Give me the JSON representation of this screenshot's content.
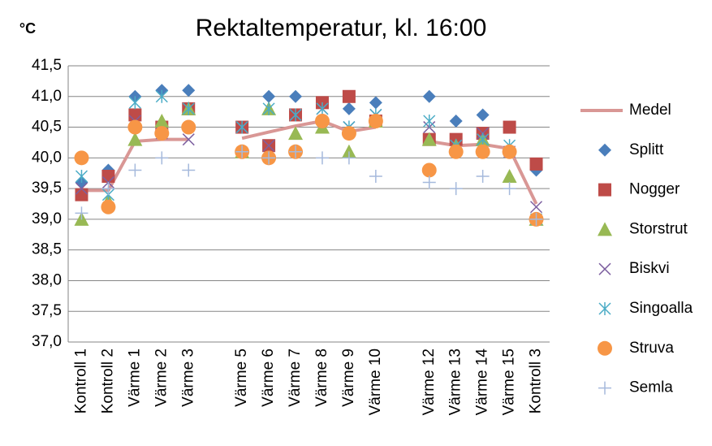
{
  "chart_data": {
    "type": "line",
    "title": "Rektaltemperatur, kl. 16:00",
    "y_unit": "°C",
    "categories": [
      "Kontroll 1",
      "Kontroll 2",
      "Värme 1",
      "Värme 2",
      "Värme 3",
      null,
      "Värme 5",
      "Värme 6",
      "Värme 7",
      "Värme 8",
      "Värme 9",
      "Värme 10",
      null,
      "Värme 12",
      "Värme 13",
      "Värme 14",
      "Värme 15",
      "Kontroll 3"
    ],
    "ylim": [
      37,
      41.5
    ],
    "yticks": [
      {
        "value": 37,
        "label": "37,0"
      },
      {
        "value": 37.5,
        "label": "37,5"
      },
      {
        "value": 38,
        "label": "38,0"
      },
      {
        "value": 38.5,
        "label": "38,5"
      },
      {
        "value": 39,
        "label": "39,0"
      },
      {
        "value": 39.5,
        "label": "39,5"
      },
      {
        "value": 40,
        "label": "40,0"
      },
      {
        "value": 40.5,
        "label": "40,5"
      },
      {
        "value": 41,
        "label": "41,0"
      },
      {
        "value": 41.5,
        "label": "41,5"
      }
    ],
    "grid": true,
    "legend": "right",
    "series": [
      {
        "name": "Medel",
        "color": "#d99795",
        "line": true,
        "values": [
          39.47,
          39.47,
          40.27,
          40.3,
          40.3,
          null,
          40.32,
          40.42,
          40.52,
          40.6,
          40.43,
          40.5,
          null,
          40.27,
          40.2,
          40.22,
          40.15,
          39.25
        ]
      },
      {
        "name": "Splitt",
        "color": "#4a7ebb",
        "marker": "diamond",
        "values": [
          39.6,
          39.8,
          41.0,
          41.1,
          41.1,
          null,
          40.5,
          41.0,
          41.0,
          40.9,
          40.8,
          40.9,
          null,
          41.0,
          40.6,
          40.7,
          40.5,
          39.8
        ]
      },
      {
        "name": "Nogger",
        "color": "#be4b48",
        "marker": "square",
        "values": [
          39.4,
          39.7,
          40.7,
          40.5,
          40.8,
          null,
          40.5,
          40.2,
          40.7,
          40.9,
          41.0,
          40.6,
          null,
          40.3,
          40.3,
          40.4,
          40.5,
          39.9
        ]
      },
      {
        "name": "Storstrut",
        "color": "#98b954",
        "marker": "triangle",
        "values": [
          39.0,
          39.3,
          40.3,
          40.6,
          40.8,
          null,
          40.1,
          40.8,
          40.4,
          40.5,
          40.1,
          40.6,
          null,
          40.3,
          40.2,
          40.3,
          39.7,
          39.0
        ]
      },
      {
        "name": "Biskvi",
        "color": "#7d60a0",
        "marker": "x",
        "values": [
          39.5,
          39.6,
          40.6,
          40.4,
          40.3,
          null,
          40.5,
          40.2,
          40.7,
          40.8,
          40.5,
          40.7,
          null,
          40.5,
          40.2,
          40.4,
          40.1,
          39.2
        ]
      },
      {
        "name": "Singoalla",
        "color": "#4bacc6",
        "marker": "asterisk",
        "values": [
          39.7,
          39.4,
          40.9,
          41.0,
          40.8,
          null,
          40.5,
          40.8,
          40.7,
          40.8,
          40.5,
          40.7,
          null,
          40.6,
          40.2,
          40.3,
          40.2,
          39.0
        ]
      },
      {
        "name": "Struva",
        "color": "#f79646",
        "marker": "circle",
        "values": [
          40.0,
          39.2,
          40.5,
          40.4,
          40.5,
          null,
          40.1,
          40.0,
          40.1,
          40.6,
          40.4,
          40.6,
          null,
          39.8,
          40.1,
          40.1,
          40.1,
          39.0
        ]
      },
      {
        "name": "Semla",
        "color": "#a5b9dc",
        "marker": "plus",
        "values": [
          39.1,
          39.5,
          39.8,
          40.0,
          39.8,
          null,
          40.1,
          40.0,
          40.1,
          40.0,
          40.0,
          39.7,
          null,
          39.6,
          39.5,
          39.7,
          39.5,
          39.0
        ]
      }
    ]
  }
}
